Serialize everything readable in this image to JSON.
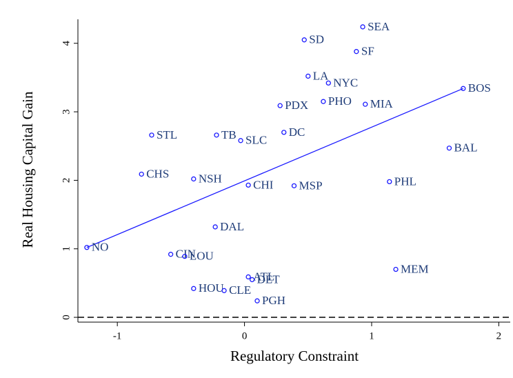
{
  "chart_data": {
    "type": "scatter",
    "x_label": "Regulatory Constraint",
    "y_label": "Real Housing Capital Gain",
    "labels": [
      "SEA",
      "SD",
      "SF",
      "LA",
      "NYC",
      "BOS",
      "PDX",
      "PHO",
      "MIA",
      "STL",
      "TB",
      "SLC",
      "DC",
      "BAL",
      "CHS",
      "NSH",
      "CHI",
      "MSP",
      "PHL",
      "DAL",
      "NO",
      "CIN",
      "LOU",
      "ATL",
      "DET",
      "MEM",
      "HOU",
      "CLE",
      "PGH"
    ],
    "x": [
      0.93,
      0.47,
      0.88,
      0.5,
      0.66,
      1.72,
      0.28,
      0.62,
      0.95,
      -0.73,
      -0.22,
      -0.03,
      0.31,
      1.61,
      -0.81,
      -0.4,
      0.03,
      0.39,
      1.14,
      -0.23,
      -1.24,
      -0.58,
      -0.47,
      0.03,
      0.06,
      1.19,
      -0.4,
      -0.16,
      0.1
    ],
    "y": [
      4.24,
      4.05,
      3.88,
      3.52,
      3.42,
      3.34,
      3.09,
      3.15,
      3.11,
      2.66,
      2.66,
      2.58,
      2.7,
      2.47,
      2.09,
      2.02,
      1.93,
      1.92,
      1.98,
      1.32,
      1.02,
      0.92,
      0.89,
      0.59,
      0.55,
      0.7,
      0.42,
      0.39,
      0.24
    ],
    "color": "#1a1aff",
    "label_color": "#1f3c78",
    "fit": {
      "x": [
        -1.24,
        1.72
      ],
      "y": [
        1.02,
        3.34
      ],
      "color": "#1a1aff"
    },
    "hline": 0,
    "xlim": [
      -1.31,
      2.09
    ],
    "ylim": [
      -0.07,
      4.35
    ],
    "xticks": [
      -1,
      0,
      1,
      2
    ],
    "yticks": [
      0,
      1,
      2,
      3,
      4
    ]
  }
}
